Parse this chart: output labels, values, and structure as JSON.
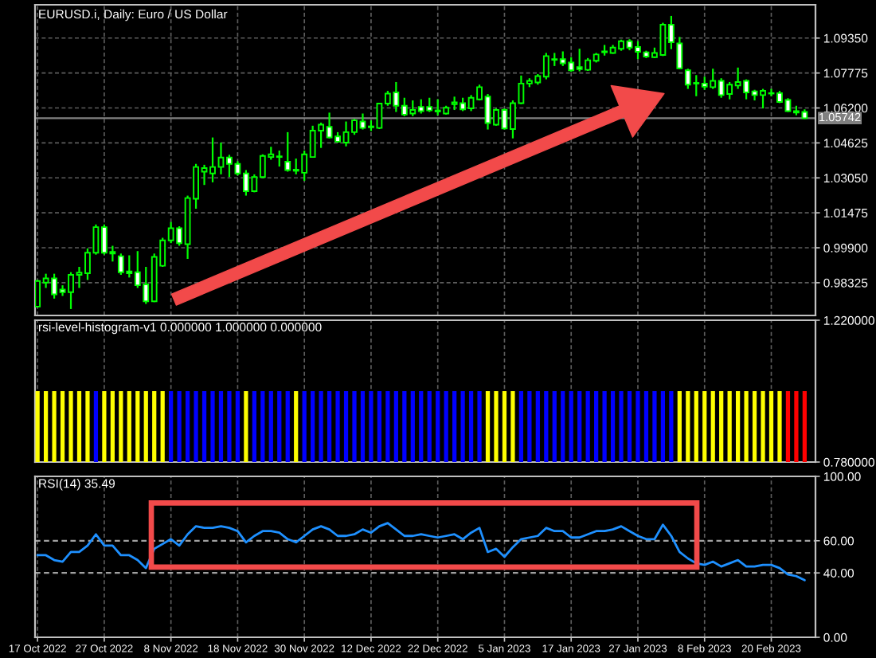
{
  "chart_data": [
    {
      "type": "candlestick",
      "title": "EURUSD.i, Daily: Euro / US Dollar",
      "categories": [
        null,
        null,
        null,
        null,
        null,
        null,
        null,
        null,
        null,
        null,
        null,
        null,
        null,
        null,
        null,
        null,
        null,
        null,
        null,
        null,
        null,
        null,
        null,
        null,
        null,
        null,
        null,
        null,
        null,
        null,
        null,
        null,
        null,
        null,
        null,
        null,
        null,
        null,
        null,
        null,
        null,
        null,
        null,
        null,
        null,
        null,
        null,
        null,
        null,
        null,
        null,
        null,
        null,
        null,
        null,
        null,
        null,
        null,
        null,
        null,
        null,
        null,
        null,
        null,
        null,
        null,
        null,
        null,
        null,
        null,
        null,
        null,
        null,
        null,
        null,
        null,
        null,
        null,
        null,
        null,
        null,
        null,
        null,
        null,
        null,
        null,
        null,
        null,
        null,
        null,
        null,
        null,
        null
      ],
      "ohlc": [
        [
          0.9725,
          0.9845,
          0.9721,
          0.984
        ],
        [
          0.9833,
          0.9873,
          0.9809,
          0.9852
        ],
        [
          0.9852,
          0.9873,
          0.9761,
          0.978
        ],
        [
          0.9802,
          0.9821,
          0.9773,
          0.979
        ],
        [
          0.979,
          0.988,
          0.9714,
          0.9868
        ],
        [
          0.9868,
          0.9904,
          0.9809,
          0.9878
        ],
        [
          0.9875,
          0.9987,
          0.9845,
          0.9968
        ],
        [
          0.9968,
          1.0095,
          0.9959,
          1.0083
        ],
        [
          1.0083,
          1.0095,
          0.9959,
          0.9968
        ],
        [
          0.9971,
          0.9999,
          0.9928,
          0.9964
        ],
        [
          0.9952,
          0.9964,
          0.9868,
          0.988
        ],
        [
          0.9883,
          0.9956,
          0.9856,
          0.9875
        ],
        [
          0.988,
          0.9975,
          0.9809,
          0.9821
        ],
        [
          0.9825,
          0.9904,
          0.9737,
          0.9749
        ],
        [
          0.9749,
          0.9964,
          0.9745,
          0.9949
        ],
        [
          0.9909,
          1.0035,
          0.9904,
          1.0023
        ],
        [
          1.0023,
          1.0106,
          1.0011,
          1.0078
        ],
        [
          1.0078,
          1.0087,
          0.9999,
          1.0011
        ],
        [
          1.0006,
          1.0225,
          0.994,
          1.0214
        ],
        [
          1.0211,
          1.0368,
          1.0166,
          1.0354
        ],
        [
          1.0333,
          1.0364,
          1.0273,
          1.0349
        ],
        [
          1.0325,
          1.0487,
          1.0285,
          1.0354
        ],
        [
          1.0354,
          1.0464,
          1.0321,
          1.0397
        ],
        [
          1.0397,
          1.0409,
          1.0309,
          1.0368
        ],
        [
          1.0368,
          1.038,
          1.0316,
          1.0325
        ],
        [
          1.0325,
          1.034,
          1.0225,
          1.0245
        ],
        [
          1.0245,
          1.0321,
          1.024,
          1.0309
        ],
        [
          1.0309,
          1.0411,
          1.0304,
          1.0404
        ],
        [
          1.0399,
          1.0445,
          1.0387,
          1.0411
        ],
        [
          1.0402,
          1.0428,
          1.0356,
          1.0399
        ],
        [
          1.0378,
          1.0511,
          1.0333,
          1.034
        ],
        [
          1.0342,
          1.0392,
          1.0321,
          1.0337
        ],
        [
          1.0328,
          1.0428,
          1.0292,
          1.0411
        ],
        [
          1.0399,
          1.054,
          1.0397,
          1.0518
        ],
        [
          1.0518,
          1.0554,
          1.044,
          1.0545
        ],
        [
          1.0535,
          1.0599,
          1.0483,
          1.0487
        ],
        [
          1.0492,
          1.0511,
          1.0464,
          1.0468
        ],
        [
          1.0464,
          1.0559,
          1.0447,
          1.0511
        ],
        [
          1.0511,
          1.0571,
          1.0499,
          1.0564
        ],
        [
          1.0559,
          1.0595,
          1.0523,
          1.053
        ],
        [
          1.0537,
          1.0564,
          1.0516,
          1.0533
        ],
        [
          1.053,
          1.0642,
          1.0525,
          1.064
        ],
        [
          1.064,
          1.0697,
          1.063,
          1.0685
        ],
        [
          1.069,
          1.0737,
          1.0602,
          1.063
        ],
        [
          1.063,
          1.0666,
          1.0583,
          1.059
        ],
        [
          1.0595,
          1.0654,
          1.0583,
          1.0611
        ],
        [
          1.0625,
          1.0659,
          1.0595,
          1.0606
        ],
        [
          1.0625,
          1.0666,
          1.0602,
          1.0609
        ],
        [
          1.0609,
          1.0659,
          1.0587,
          1.0604
        ],
        [
          1.0595,
          1.063,
          1.059,
          1.0621
        ],
        [
          1.0637,
          1.0671,
          1.0611,
          1.0645
        ],
        [
          1.0642,
          1.0666,
          1.0606,
          1.0614
        ],
        [
          1.0618,
          1.0678,
          1.0606,
          1.0666
        ],
        [
          1.0659,
          1.0725,
          1.0654,
          1.0714
        ],
        [
          1.0671,
          1.0683,
          1.0523,
          1.0552
        ],
        [
          1.0545,
          1.0618,
          1.054,
          1.0611
        ],
        [
          1.0611,
          1.0618,
          1.0523,
          1.0528
        ],
        [
          1.0525,
          1.0654,
          1.0483,
          1.0642
        ],
        [
          1.0642,
          1.0766,
          1.0637,
          1.073
        ],
        [
          1.073,
          1.0754,
          1.0714,
          1.0742
        ],
        [
          1.0735,
          1.0773,
          1.0725,
          1.0764
        ],
        [
          1.0761,
          1.0868,
          1.0749,
          1.0854
        ],
        [
          1.0837,
          1.0868,
          1.0809,
          1.084
        ],
        [
          1.084,
          1.0875,
          1.0809,
          1.0821
        ],
        [
          1.0825,
          1.0849,
          1.0783,
          1.079
        ],
        [
          1.0804,
          1.0887,
          1.0785,
          1.0795
        ],
        [
          1.0792,
          1.0845,
          1.0787,
          1.0835
        ],
        [
          1.0833,
          1.0868,
          1.0825,
          1.0861
        ],
        [
          1.0871,
          1.0904,
          1.0856,
          1.0875
        ],
        [
          1.0868,
          1.0904,
          1.0864,
          1.0892
        ],
        [
          1.0887,
          1.0928,
          1.0878,
          1.0921
        ],
        [
          1.0921,
          1.093,
          1.088,
          1.0892
        ],
        [
          1.0895,
          1.0921,
          1.084,
          1.0873
        ],
        [
          1.0871,
          1.0878,
          1.0845,
          1.0852
        ],
        [
          1.0849,
          1.0892,
          1.0845,
          1.0868
        ],
        [
          1.0859,
          1.1004,
          1.0854,
          1.0995
        ],
        [
          1.0995,
          1.1035,
          1.0885,
          1.0916
        ],
        [
          1.0911,
          1.094,
          1.0795,
          1.0799
        ],
        [
          1.079,
          1.0797,
          1.0706,
          1.0725
        ],
        [
          1.0733,
          1.0768,
          1.0673,
          1.073
        ],
        [
          1.073,
          1.0761,
          1.0702,
          1.0716
        ],
        [
          1.0714,
          1.0797,
          1.0706,
          1.0742
        ],
        [
          1.0742,
          1.0754,
          1.0666,
          1.0678
        ],
        [
          1.0683,
          1.0737,
          1.0659,
          1.0725
        ],
        [
          1.0721,
          1.0802,
          1.0706,
          1.0737
        ],
        [
          1.0742,
          1.0749,
          1.0659,
          1.069
        ],
        [
          1.0695,
          1.0702,
          1.0654,
          1.0678
        ],
        [
          1.0678,
          1.0706,
          1.0618,
          1.0697
        ],
        [
          1.0687,
          1.0706,
          1.0673,
          1.0685
        ],
        [
          1.0687,
          1.0697,
          1.0642,
          1.0647
        ],
        [
          1.0656,
          1.0664,
          1.0602,
          1.0606
        ],
        [
          1.0606,
          1.063,
          1.0587,
          1.0599
        ],
        [
          1.0602,
          1.0614,
          1.057,
          1.0574
        ]
      ],
      "color": "#00ff00",
      "colors": [
        "#000000",
        "#000000",
        "#ffffff",
        "#ffffff",
        "#000000",
        "#000000",
        "#000000",
        "#000000",
        "#ffffff",
        "#ffffff",
        "#ffffff",
        "#ffffff",
        "#ffffff",
        "#ffffff",
        "#000000",
        "#000000",
        "#000000",
        "#ffffff",
        "#000000",
        "#000000",
        "#000000",
        "#000000",
        "#000000",
        "#ffffff",
        "#ffffff",
        "#ffffff",
        "#000000",
        "#000000",
        "#000000",
        "#ffffff",
        "#ffffff",
        "#ffffff",
        "#000000",
        "#000000",
        "#000000",
        "#ffffff",
        "#ffffff",
        "#000000",
        "#000000",
        "#ffffff",
        "#ffffff",
        "#000000",
        "#000000",
        "#ffffff",
        "#ffffff",
        "#000000",
        "#ffffff",
        "#ffffff",
        "#ffffff",
        "#000000",
        "#000000",
        "#ffffff",
        "#000000",
        "#000000",
        "#ffffff",
        "#000000",
        "#ffffff",
        "#000000",
        "#000000",
        "#000000",
        "#000000",
        "#000000",
        "#000000",
        "#ffffff",
        "#ffffff",
        "#ffffff",
        "#000000",
        "#000000",
        "#000000",
        "#000000",
        "#000000",
        "#ffffff",
        "#ffffff",
        "#ffffff",
        "#000000",
        "#000000",
        "#ffffff",
        "#ffffff",
        "#ffffff",
        "#ffffff",
        "#ffffff",
        "#000000",
        "#ffffff",
        "#000000",
        "#000000",
        "#ffffff",
        "#ffffff",
        "#000000",
        "#ffffff",
        "#ffffff",
        "#ffffff",
        "#ffffff",
        "#ffffff"
      ],
      "ylim": [
        0.9685,
        1.1085
      ],
      "yticks": [
        {
          "value": 1.0935,
          "label": "1.09350"
        },
        {
          "value": 1.07775,
          "label": "1.07775"
        },
        {
          "value": 1.062,
          "label": "1.06200"
        },
        {
          "value": 1.04625,
          "label": "1.04625"
        },
        {
          "value": 1.0305,
          "label": "1.03050"
        },
        {
          "value": 1.01475,
          "label": "1.01475"
        },
        {
          "value": 0.999,
          "label": "0.99900"
        },
        {
          "value": 0.98325,
          "label": "0.98325"
        }
      ],
      "grid": true,
      "tick_labels": "y",
      "ref_lines": [
        {
          "axis": "y",
          "value": 1.05742,
          "label": "1.05742",
          "color": "#808080"
        }
      ]
    },
    {
      "type": "bar",
      "title": "rsi-level-histogram-v1 0.000000 1.000000 0.000000",
      "categories": [
        null,
        null,
        null,
        null,
        null,
        null,
        null,
        null,
        null,
        null,
        null,
        null,
        null,
        null,
        null,
        null,
        null,
        null,
        null,
        null,
        null,
        null,
        null,
        null,
        null,
        null,
        null,
        null,
        null,
        null,
        null,
        null,
        null,
        null,
        null,
        null,
        null,
        null,
        null,
        null,
        null,
        null,
        null,
        null,
        null,
        null,
        null,
        null,
        null,
        null,
        null,
        null,
        null,
        null,
        null,
        null,
        null,
        null,
        null,
        null,
        null,
        null,
        null,
        null,
        null,
        null,
        null,
        null,
        null,
        null,
        null,
        null,
        null,
        null,
        null,
        null,
        null,
        null,
        null,
        null,
        null,
        null,
        null,
        null,
        null,
        null,
        null,
        null,
        null,
        null,
        null,
        null,
        null
      ],
      "values": [
        1,
        1,
        1,
        1,
        1,
        1,
        1,
        1,
        1,
        1,
        1,
        1,
        1,
        1,
        1,
        1,
        1,
        1,
        1,
        1,
        1,
        1,
        1,
        1,
        1,
        1,
        1,
        1,
        1,
        1,
        1,
        1,
        1,
        1,
        1,
        1,
        1,
        1,
        1,
        1,
        1,
        1,
        1,
        1,
        1,
        1,
        1,
        1,
        1,
        1,
        1,
        1,
        1,
        1,
        1,
        1,
        1,
        1,
        1,
        1,
        1,
        1,
        1,
        1,
        1,
        1,
        1,
        1,
        1,
        1,
        1,
        1,
        1,
        1,
        1,
        1,
        1,
        1,
        1,
        1,
        1,
        1,
        1,
        1,
        1,
        1,
        1,
        1,
        1,
        1,
        1,
        1,
        1
      ],
      "colors": [
        "#ffff00",
        "#ffff00",
        "#ffff00",
        "#ffff00",
        "#ffff00",
        "#ffff00",
        "#ffff00",
        "#0000ff",
        "#ffff00",
        "#ffff00",
        "#ffff00",
        "#ffff00",
        "#ffff00",
        "#ffff00",
        "#ffff00",
        "#ffff00",
        "#0000ff",
        "#0000ff",
        "#0000ff",
        "#0000ff",
        "#0000ff",
        "#0000ff",
        "#0000ff",
        "#0000ff",
        "#0000ff",
        "#ffff00",
        "#0000ff",
        "#0000ff",
        "#0000ff",
        "#0000ff",
        "#0000ff",
        "#ffff00",
        "#0000ff",
        "#0000ff",
        "#0000ff",
        "#0000ff",
        "#0000ff",
        "#0000ff",
        "#0000ff",
        "#0000ff",
        "#0000ff",
        "#0000ff",
        "#0000ff",
        "#0000ff",
        "#0000ff",
        "#0000ff",
        "#0000ff",
        "#0000ff",
        "#0000ff",
        "#0000ff",
        "#0000ff",
        "#0000ff",
        "#0000ff",
        "#0000ff",
        "#ffff00",
        "#ffff00",
        "#ffff00",
        "#ffff00",
        "#0000ff",
        "#0000ff",
        "#0000ff",
        "#0000ff",
        "#0000ff",
        "#0000ff",
        "#0000ff",
        "#0000ff",
        "#0000ff",
        "#0000ff",
        "#0000ff",
        "#0000ff",
        "#0000ff",
        "#0000ff",
        "#0000ff",
        "#0000ff",
        "#0000ff",
        "#0000ff",
        "#0000ff",
        "#ffff00",
        "#ffff00",
        "#ffff00",
        "#ffff00",
        "#ffff00",
        "#ffff00",
        "#ffff00",
        "#ffff00",
        "#ffff00",
        "#ffff00",
        "#ffff00",
        "#ffff00",
        "#ffff00",
        "#ff0000",
        "#ff0000",
        "#ff0000"
      ],
      "ylim": [
        0.78,
        1.22
      ],
      "yticks": [
        {
          "value": 1.22,
          "label": "1.220000"
        },
        {
          "value": 0.78,
          "label": "0.780000"
        }
      ],
      "grid": "x",
      "tick_labels": "y"
    },
    {
      "type": "line",
      "title": "RSI(14) 35.49",
      "categories": [
        "17 Oct 2022",
        null,
        null,
        null,
        null,
        null,
        null,
        null,
        "27 Oct 2022",
        null,
        null,
        null,
        null,
        null,
        null,
        null,
        "8 Nov 2022",
        null,
        null,
        null,
        null,
        null,
        null,
        null,
        "18 Nov 2022",
        null,
        null,
        null,
        null,
        null,
        null,
        null,
        "30 Nov 2022",
        null,
        null,
        null,
        null,
        null,
        null,
        null,
        "12 Dec 2022",
        null,
        null,
        null,
        null,
        null,
        null,
        null,
        "22 Dec 2022",
        null,
        null,
        null,
        null,
        null,
        null,
        null,
        "5 Jan 2023",
        null,
        null,
        null,
        null,
        null,
        null,
        null,
        "17 Jan 2023",
        null,
        null,
        null,
        null,
        null,
        null,
        null,
        "27 Jan 2023",
        null,
        null,
        null,
        null,
        null,
        null,
        null,
        "8 Feb 2023",
        null,
        null,
        null,
        null,
        null,
        null,
        null,
        "20 Feb 2023",
        null,
        null,
        null,
        null
      ],
      "series": [
        {
          "color": "#1e90ff",
          "values": [
            51,
            51,
            48,
            47,
            53,
            53,
            57,
            64,
            57,
            57,
            51,
            51,
            48,
            43,
            55,
            58,
            61,
            57,
            64,
            69,
            68,
            68,
            69,
            68,
            66,
            59,
            63,
            66,
            66,
            65,
            61,
            59,
            63,
            67,
            69,
            67,
            63,
            63,
            64,
            67,
            65,
            69,
            71,
            67,
            63,
            63,
            64,
            63,
            62,
            63,
            64,
            61,
            65,
            68,
            53,
            55,
            50,
            56,
            61,
            62,
            63,
            68,
            66,
            66,
            62,
            62,
            64,
            66,
            66,
            67,
            69,
            66,
            63,
            61,
            61,
            70,
            63,
            53,
            49,
            46,
            45,
            47,
            44,
            46,
            48,
            44,
            44,
            45,
            45,
            43,
            39,
            38,
            35.49
          ]
        }
      ],
      "ylim": [
        0,
        100
      ],
      "yticks": [
        {
          "value": 100,
          "label": "100.00"
        },
        {
          "value": 60,
          "label": "60.00"
        },
        {
          "value": 40,
          "label": "40.00"
        },
        {
          "value": 0,
          "label": "0.00"
        }
      ],
      "grid": "x",
      "ref_lines": [
        {
          "axis": "y",
          "value": 60,
          "color": "#a0a0a0",
          "line_style": "dashed"
        },
        {
          "axis": "y",
          "value": 40,
          "color": "#a0a0a0",
          "line_style": "dashed"
        }
      ]
    }
  ]
}
